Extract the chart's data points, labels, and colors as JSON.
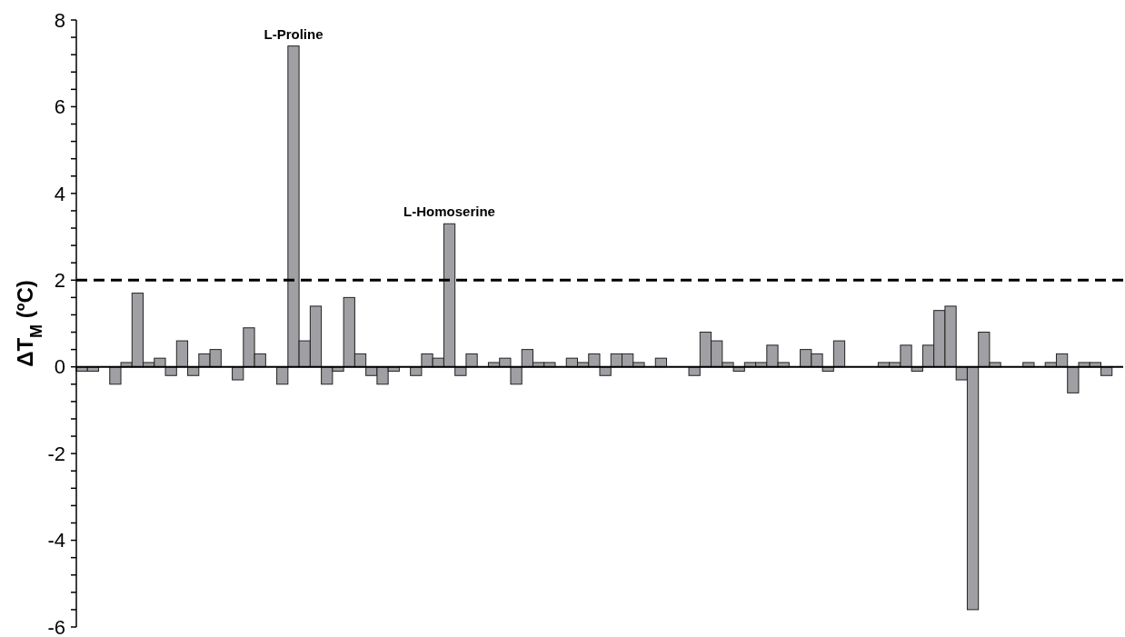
{
  "chart_data": {
    "type": "bar",
    "ylabel": "ΔT$_{M}$ (ºC)",
    "categories": [
      null,
      null,
      null,
      null,
      null,
      null,
      null,
      null,
      null,
      null,
      null,
      null,
      null,
      null,
      null,
      null,
      null,
      null,
      null,
      null,
      null,
      null,
      null,
      null,
      null,
      null,
      null,
      null,
      null,
      null,
      null,
      null,
      null,
      null,
      null,
      null,
      null,
      null,
      null,
      null,
      null,
      null,
      null,
      null,
      null,
      null,
      null,
      null,
      null,
      null,
      null,
      null,
      null,
      null,
      null,
      null,
      null,
      null,
      null,
      null,
      null,
      null,
      null,
      null,
      null,
      null,
      null,
      null,
      null,
      null,
      null,
      null,
      null,
      null,
      null,
      null,
      null,
      null,
      null,
      null,
      null,
      null,
      null,
      null,
      null,
      null,
      null,
      null,
      null,
      null,
      null,
      null,
      null,
      null
    ],
    "values": [
      -0.1,
      -0.1,
      null,
      -0.4,
      0.1,
      1.7,
      0.1,
      0.2,
      -0.2,
      0.6,
      -0.2,
      0.3,
      0.4,
      null,
      -0.3,
      0.9,
      0.3,
      null,
      -0.4,
      7.4,
      0.6,
      1.4,
      -0.4,
      -0.1,
      1.6,
      0.3,
      -0.2,
      -0.4,
      -0.1,
      null,
      -0.2,
      0.3,
      0.2,
      3.3,
      -0.2,
      0.3,
      null,
      0.1,
      0.2,
      -0.4,
      0.4,
      0.1,
      0.1,
      null,
      0.2,
      0.1,
      0.3,
      -0.2,
      0.3,
      0.3,
      0.1,
      null,
      0.2,
      null,
      null,
      -0.2,
      0.8,
      0.6,
      0.1,
      -0.1,
      0.1,
      0.1,
      0.5,
      0.1,
      null,
      0.4,
      0.3,
      -0.1,
      0.6,
      null,
      null,
      null,
      0.1,
      0.1,
      0.5,
      -0.1,
      0.5,
      1.3,
      1.4,
      -0.3,
      -5.6,
      0.8,
      0.1,
      null,
      null,
      0.1,
      null,
      0.1,
      0.3,
      -0.6,
      0.1,
      0.1,
      -0.2,
      null
    ],
    "color": "#a0a0a4",
    "ylim": [
      -6,
      8
    ],
    "yticks": [
      -6,
      {
        "value": -5.6,
        "label": null
      },
      {
        "value": -5.2,
        "label": null
      },
      {
        "value": -4.8,
        "label": null
      },
      {
        "value": -4.4,
        "label": null
      },
      -4,
      {
        "value": -3.6,
        "label": null
      },
      {
        "value": -3.2,
        "label": null
      },
      {
        "value": -2.8,
        "label": null
      },
      {
        "value": -2.4,
        "label": null
      },
      -2,
      {
        "value": -1.6,
        "label": null
      },
      {
        "value": -1.2,
        "label": null
      },
      {
        "value": -0.8,
        "label": null
      },
      {
        "value": -0.4,
        "label": null
      },
      0,
      {
        "value": 0.4,
        "label": null
      },
      {
        "value": 0.8,
        "label": null
      },
      {
        "value": 1.2,
        "label": null
      },
      {
        "value": 1.6,
        "label": null
      },
      2,
      {
        "value": 2.4,
        "label": null
      },
      {
        "value": 2.8,
        "label": null
      },
      {
        "value": 3.2,
        "label": null
      },
      {
        "value": 3.6,
        "label": null
      },
      4,
      {
        "value": 4.4,
        "label": null
      },
      {
        "value": 4.8,
        "label": null
      },
      {
        "value": 5.2,
        "label": null
      },
      {
        "value": 5.6,
        "label": null
      },
      6,
      {
        "value": 6.4,
        "label": null
      },
      {
        "value": 6.8,
        "label": null
      },
      {
        "value": 7.2,
        "label": null
      },
      {
        "value": 7.6,
        "label": null
      },
      8
    ],
    "ref_lines": [
      {
        "axis": "y",
        "value": 2,
        "color": "#000000",
        "line_style": "dashed"
      }
    ],
    "annotations": [
      {
        "text": "L-Proline",
        "y": 7.4
      },
      {
        "text": "L-Homoserine",
        "y": 3.3
      }
    ],
    "tick_labels": "y"
  }
}
